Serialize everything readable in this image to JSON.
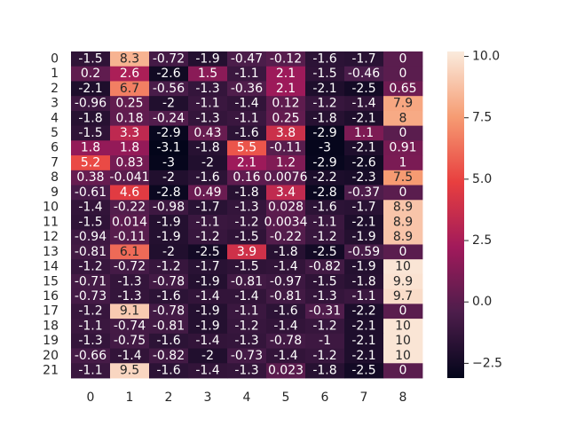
{
  "chart_data": {
    "type": "heatmap",
    "title": "",
    "xlabel": "",
    "ylabel": "",
    "x_categories": [
      "0",
      "1",
      "2",
      "3",
      "4",
      "5",
      "6",
      "7",
      "8"
    ],
    "y_categories": [
      "0",
      "1",
      "2",
      "3",
      "4",
      "5",
      "6",
      "7",
      "8",
      "9",
      "10",
      "11",
      "12",
      "13",
      "14",
      "15",
      "16",
      "17",
      "18",
      "19",
      "20",
      "21"
    ],
    "values": [
      [
        -1.5,
        8.3,
        -0.72,
        -1.9,
        -0.47,
        -0.12,
        -1.6,
        -1.7,
        0
      ],
      [
        0.2,
        2.6,
        -2.6,
        1.5,
        -1.1,
        2.1,
        -1.5,
        -0.46,
        0
      ],
      [
        -2.1,
        6.7,
        -0.56,
        -1.3,
        -0.36,
        2.1,
        -2.1,
        -2.5,
        0.65
      ],
      [
        -0.96,
        0.25,
        -2,
        -1.1,
        -1.4,
        0.12,
        -1.2,
        -1.4,
        7.9
      ],
      [
        -1.8,
        0.18,
        -0.24,
        -1.3,
        -1.1,
        0.25,
        -1.8,
        -2.1,
        8
      ],
      [
        -1.5,
        3.3,
        -2.9,
        0.43,
        -1.6,
        3.8,
        -2.9,
        1.1,
        0
      ],
      [
        1.8,
        1.8,
        -3.1,
        -1.8,
        5.5,
        -0.11,
        -3,
        -2.1,
        0.91
      ],
      [
        5.2,
        0.83,
        -3,
        -2,
        2.1,
        1.2,
        -2.9,
        -2.6,
        1
      ],
      [
        0.38,
        -0.041,
        -2,
        -1.6,
        0.16,
        0.0076,
        -2.2,
        -2.3,
        7.5
      ],
      [
        -0.61,
        4.6,
        -2.8,
        0.49,
        -1.8,
        3.4,
        -2.8,
        -0.37,
        0
      ],
      [
        -1.4,
        -0.22,
        -0.98,
        -1.7,
        -1.3,
        0.028,
        -1.6,
        -1.7,
        8.9
      ],
      [
        -1.5,
        0.014,
        -1.9,
        -1.1,
        -1.2,
        0.0034,
        -1.1,
        -2.1,
        8.9
      ],
      [
        -0.94,
        -0.11,
        -1.9,
        -1.2,
        -1.5,
        -0.22,
        -1.2,
        -1.9,
        8.9
      ],
      [
        -0.81,
        6.1,
        -2,
        -2.5,
        3.9,
        -1.8,
        -2.5,
        -0.59,
        0
      ],
      [
        -1.2,
        -0.72,
        -1.2,
        -1.7,
        -1.5,
        -1.4,
        -0.82,
        -1.9,
        10
      ],
      [
        -0.71,
        -1.3,
        -0.78,
        -1.9,
        -0.81,
        -0.97,
        -1.5,
        -1.8,
        9.9
      ],
      [
        -0.73,
        -1.3,
        -1.6,
        -1.4,
        -1.4,
        -0.81,
        -1.3,
        -1.1,
        9.7
      ],
      [
        -1.2,
        9.1,
        -0.78,
        -1.9,
        -1.1,
        -1.6,
        -0.31,
        -2.2,
        0
      ],
      [
        -1.1,
        -0.74,
        -0.81,
        -1.9,
        -1.2,
        -1.4,
        -1.2,
        -2.1,
        10
      ],
      [
        -1.3,
        -0.75,
        -1.6,
        -1.4,
        -1.3,
        -0.78,
        -1,
        -2.1,
        10
      ],
      [
        -0.66,
        -1.4,
        -0.82,
        -2,
        -0.73,
        -1.4,
        -1.2,
        -2.1,
        10
      ],
      [
        -1.1,
        9.5,
        -1.6,
        -1.4,
        -1.3,
        0.023,
        -1.8,
        -2.5,
        0
      ]
    ],
    "labels": [
      [
        "-1.5",
        "8.3",
        "-0.72",
        "-1.9",
        "-0.47",
        "-0.12",
        "-1.6",
        "-1.7",
        "0"
      ],
      [
        "0.2",
        "2.6",
        "-2.6",
        "1.5",
        "-1.1",
        "2.1",
        "-1.5",
        "-0.46",
        "0"
      ],
      [
        "-2.1",
        "6.7",
        "-0.56",
        "-1.3",
        "-0.36",
        "2.1",
        "-2.1",
        "-2.5",
        "0.65"
      ],
      [
        "-0.96",
        "0.25",
        "-2",
        "-1.1",
        "-1.4",
        "0.12",
        "-1.2",
        "-1.4",
        "7.9"
      ],
      [
        "-1.8",
        "0.18",
        "-0.24",
        "-1.3",
        "-1.1",
        "0.25",
        "-1.8",
        "-2.1",
        "8"
      ],
      [
        "-1.5",
        "3.3",
        "-2.9",
        "0.43",
        "-1.6",
        "3.8",
        "-2.9",
        "1.1",
        "0"
      ],
      [
        "1.8",
        "1.8",
        "-3.1",
        "-1.8",
        "5.5",
        "-0.11",
        "-3",
        "-2.1",
        "0.91"
      ],
      [
        "5.2",
        "0.83",
        "-3",
        "-2",
        "2.1",
        "1.2",
        "-2.9",
        "-2.6",
        "1"
      ],
      [
        "0.38",
        "-0.041",
        "-2",
        "-1.6",
        "0.16",
        "0.0076",
        "-2.2",
        "-2.3",
        "7.5"
      ],
      [
        "-0.61",
        "4.6",
        "-2.8",
        "0.49",
        "-1.8",
        "3.4",
        "-2.8",
        "-0.37",
        "0"
      ],
      [
        "-1.4",
        "-0.22",
        "-0.98",
        "-1.7",
        "-1.3",
        "0.028",
        "-1.6",
        "-1.7",
        "8.9"
      ],
      [
        "-1.5",
        "0.014",
        "-1.9",
        "-1.1",
        "-1.2",
        "0.0034",
        "-1.1",
        "-2.1",
        "8.9"
      ],
      [
        "-0.94",
        "-0.11",
        "-1.9",
        "-1.2",
        "-1.5",
        "-0.22",
        "-1.2",
        "-1.9",
        "8.9"
      ],
      [
        "-0.81",
        "6.1",
        "-2",
        "-2.5",
        "3.9",
        "-1.8",
        "-2.5",
        "-0.59",
        "0"
      ],
      [
        "-1.2",
        "-0.72",
        "-1.2",
        "-1.7",
        "-1.5",
        "-1.4",
        "-0.82",
        "-1.9",
        "10"
      ],
      [
        "-0.71",
        "-1.3",
        "-0.78",
        "-1.9",
        "-0.81",
        "-0.97",
        "-1.5",
        "-1.8",
        "9.9"
      ],
      [
        "-0.73",
        "-1.3",
        "-1.6",
        "-1.4",
        "-1.4",
        "-0.81",
        "-1.3",
        "-1.1",
        "9.7"
      ],
      [
        "-1.2",
        "9.1",
        "-0.78",
        "-1.9",
        "-1.1",
        "-1.6",
        "-0.31",
        "-2.2",
        "0"
      ],
      [
        "-1.1",
        "-0.74",
        "-0.81",
        "-1.9",
        "-1.2",
        "-1.4",
        "-1.2",
        "-2.1",
        "10"
      ],
      [
        "-1.3",
        "-0.75",
        "-1.6",
        "-1.4",
        "-1.3",
        "-0.78",
        "-1",
        "-2.1",
        "10"
      ],
      [
        "-0.66",
        "-1.4",
        "-0.82",
        "-2",
        "-0.73",
        "-1.4",
        "-1.2",
        "-2.1",
        "10"
      ],
      [
        "-1.1",
        "9.5",
        "-1.6",
        "-1.4",
        "-1.3",
        "0.023",
        "-1.8",
        "-2.5",
        "0"
      ]
    ],
    "colorbar": {
      "vmin": -3.1,
      "vmax": 10.2,
      "ticks": [
        -2.5,
        0.0,
        2.5,
        5.0,
        7.5,
        10.0
      ],
      "tick_labels": [
        "−2.5",
        "0.0",
        "2.5",
        "5.0",
        "7.5",
        "10.0"
      ],
      "colormap": "rocket",
      "colors": [
        "#03051a",
        "#4c1d4b",
        "#a11a5b",
        "#e83f3f",
        "#f69c73",
        "#faebdd"
      ]
    },
    "grid": false,
    "legend": "colorbar-right"
  }
}
